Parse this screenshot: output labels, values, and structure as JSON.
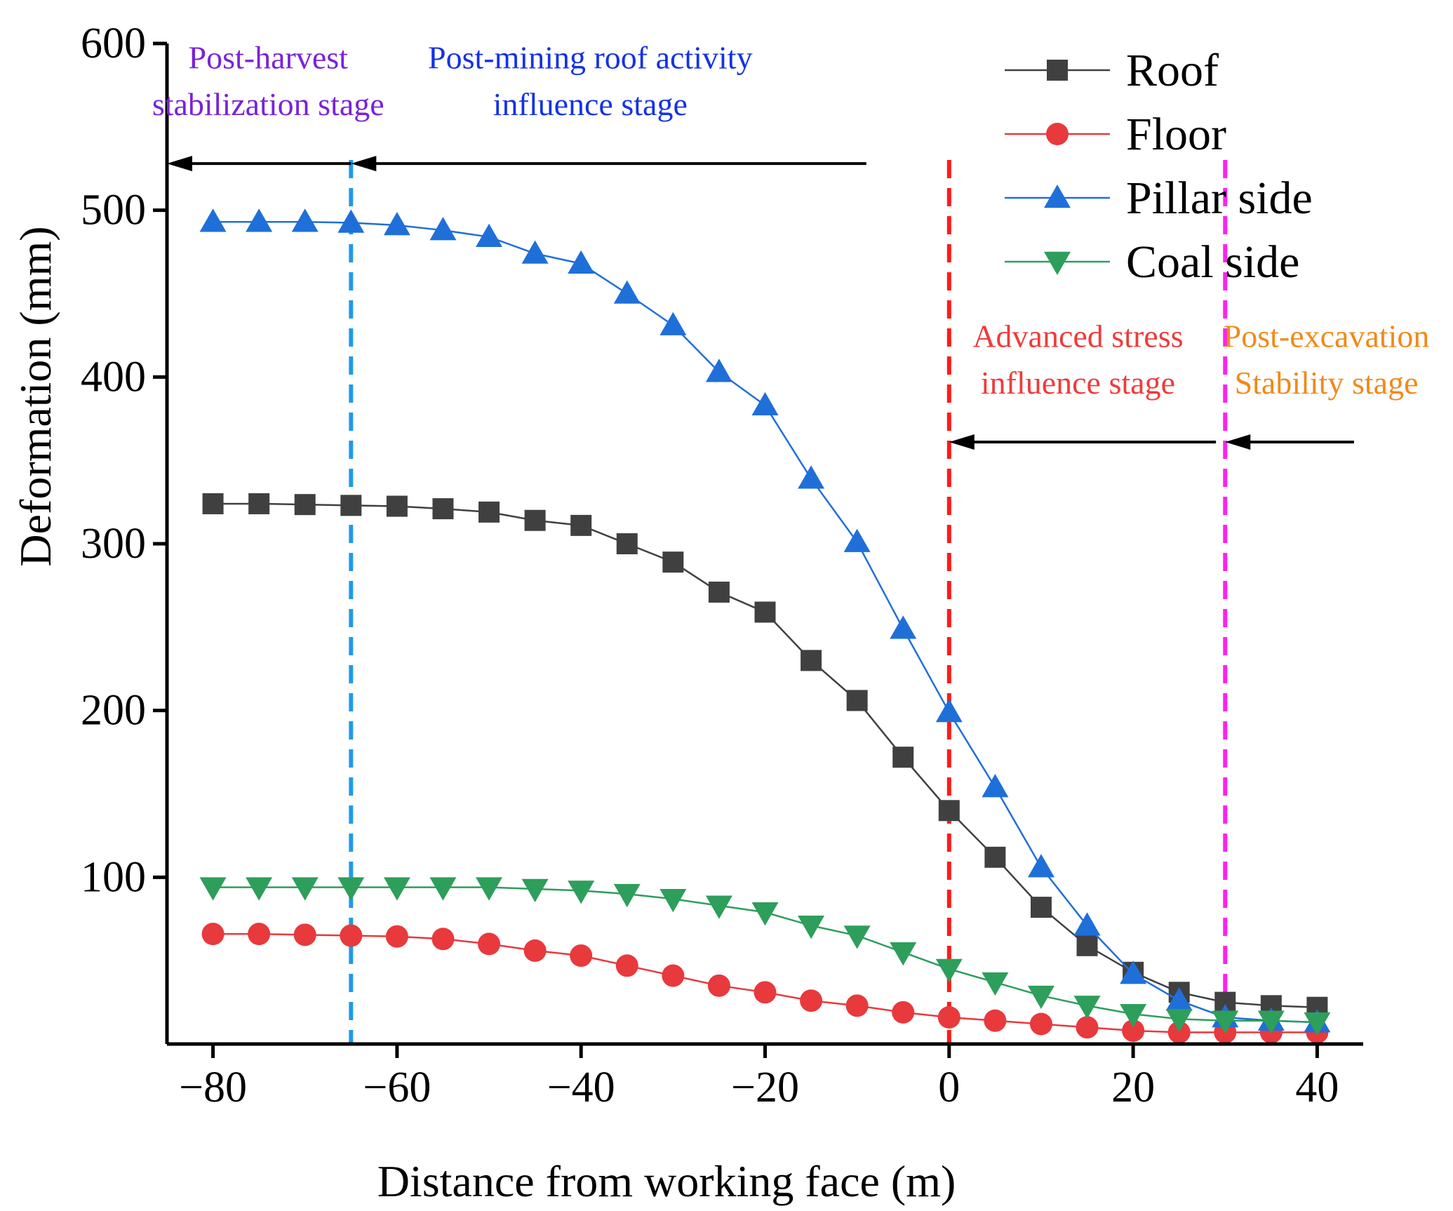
{
  "chart_data": {
    "type": "line",
    "title": "",
    "xlabel": "Distance from working face (m)",
    "ylabel": "Deformation (mm)",
    "xlim": [
      -85,
      45
    ],
    "ylim": [
      0,
      600
    ],
    "x_ticks": [
      -80,
      -60,
      -40,
      -20,
      0,
      20,
      40
    ],
    "x_tick_labels": [
      "−80",
      "−60",
      "−40",
      "−20",
      "0",
      "20",
      "40"
    ],
    "y_ticks": [
      100,
      200,
      300,
      400,
      500,
      600
    ],
    "y_tick_labels": [
      "100",
      "200",
      "300",
      "400",
      "500",
      "600"
    ],
    "grid": false,
    "legend_position": "top-right",
    "x": [
      -80,
      -75,
      -70,
      -65,
      -60,
      -55,
      -50,
      -45,
      -40,
      -35,
      -30,
      -25,
      -20,
      -15,
      -10,
      -5,
      0,
      5,
      10,
      15,
      20,
      25,
      30,
      35,
      40
    ],
    "series": [
      {
        "name": "Roof",
        "color": "#404040",
        "marker": "square",
        "values": [
          324,
          324,
          323.5,
          323,
          322.5,
          321,
          319,
          314,
          311,
          300,
          289,
          271,
          259,
          230,
          206,
          172,
          140,
          112,
          82,
          59,
          43,
          31,
          25,
          23,
          22
        ]
      },
      {
        "name": "Floor",
        "color": "#e8393d",
        "marker": "circle",
        "values": [
          66,
          66,
          65.5,
          65,
          64.5,
          63,
          60,
          56,
          53,
          47,
          41,
          35,
          31,
          26,
          23,
          19,
          16,
          14,
          12,
          10,
          8,
          7,
          7,
          7,
          7
        ]
      },
      {
        "name": "Pillar side",
        "color": "#1f6fd9",
        "marker": "triangle-up",
        "values": [
          493,
          493,
          493,
          492.5,
          491,
          488,
          484,
          474,
          468,
          450,
          431,
          403,
          383,
          339,
          301,
          249,
          199,
          154,
          106,
          71,
          42,
          26,
          16,
          14,
          13
        ]
      },
      {
        "name": "Coal side",
        "color": "#2e9e5b",
        "marker": "triangle-down",
        "values": [
          94,
          94,
          94,
          94,
          94,
          94,
          94,
          93,
          92,
          90,
          87,
          83,
          79,
          71,
          65,
          55,
          45,
          37,
          29,
          23,
          18,
          15,
          14,
          14,
          13
        ]
      }
    ],
    "reference_lines": [
      {
        "x": -65,
        "color": "#1e9be8",
        "style": "dashed"
      },
      {
        "x": 0,
        "color": "#ff1a1a",
        "style": "dashed"
      },
      {
        "x": 30,
        "color": "#ff22ee",
        "style": "dashed"
      }
    ],
    "arrows": [
      {
        "from_x": -9,
        "to_x": -65,
        "y": 528,
        "color": "#000000"
      },
      {
        "from_x": -65,
        "to_x": -85,
        "y": 528,
        "color": "#000000"
      },
      {
        "from_x": 44,
        "to_x": 30,
        "y": 361,
        "color": "#000000"
      },
      {
        "from_x": 29,
        "to_x": 0,
        "y": 361,
        "color": "#000000"
      }
    ],
    "annotations": [
      {
        "name": "post-harvest",
        "lines": [
          "Post-harvest",
          "stabilization stage"
        ],
        "color": "#7a23d9",
        "x": -74,
        "y": 585,
        "line_gap": 28
      },
      {
        "name": "post-mining-roof",
        "lines": [
          "Post-mining roof activity",
          "influence stage"
        ],
        "color": "#1432e6",
        "x": -39,
        "y": 585,
        "line_gap": 28
      },
      {
        "name": "advanced-stress",
        "lines": [
          "Advanced stress",
          "influence stage"
        ],
        "color": "#ef3b3b",
        "x": 14,
        "y": 418,
        "line_gap": 28
      },
      {
        "name": "post-excavation",
        "lines": [
          "Post-excavation",
          "Stability stage"
        ],
        "color": "#f08a1a",
        "x": 41,
        "y": 418,
        "line_gap": 28
      }
    ]
  }
}
